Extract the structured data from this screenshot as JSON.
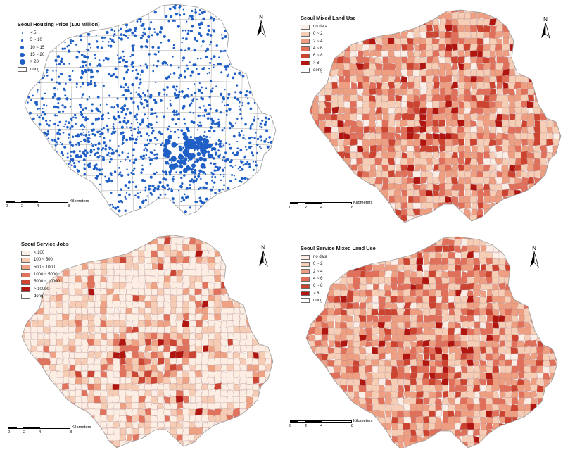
{
  "panels": [
    {
      "id": "housing",
      "title": "Seoul Housing Price (100 Million)",
      "legend_type": "points",
      "point_color": "#1f5fc6",
      "legend": [
        {
          "label": "< 5"
        },
        {
          "label": "5 ~ 10"
        },
        {
          "label": "10 ~ 15"
        },
        {
          "label": "15 ~ 20"
        },
        {
          "label": "> 20"
        }
      ],
      "boundary_label": "dong"
    },
    {
      "id": "mixed",
      "title": "Seoul Mixed Land Use",
      "legend_type": "fill",
      "legend": [
        {
          "label": "no data",
          "color": "#fbeee6"
        },
        {
          "label": "0 ~ 2",
          "color": "#f6cdb5"
        },
        {
          "label": "2 ~ 4",
          "color": "#ee9f81"
        },
        {
          "label": "4 ~ 6",
          "color": "#e1705a"
        },
        {
          "label": "6 ~ 8",
          "color": "#cc4430"
        },
        {
          "label": "> 8",
          "color": "#b1150f"
        }
      ],
      "boundary_label": "dong"
    },
    {
      "id": "jobs",
      "title": "Seoul Service Jobs",
      "legend_type": "fill",
      "legend": [
        {
          "label": "< 100",
          "color": "#fdeee3"
        },
        {
          "label": "100 ~ 500",
          "color": "#f6cdb4"
        },
        {
          "label": "500 ~ 1000",
          "color": "#eea283"
        },
        {
          "label": "1000 ~ 5000",
          "color": "#e1725b"
        },
        {
          "label": "5000 ~ 10000",
          "color": "#cc4532"
        },
        {
          "label": "> 10000",
          "color": "#b1150f"
        }
      ],
      "boundary_label": "dong"
    },
    {
      "id": "service",
      "title": "Seoul Service Mixed Land Use",
      "legend_type": "fill",
      "legend": [
        {
          "label": "no data",
          "color": "#fbeee6"
        },
        {
          "label": "0 ~ 2",
          "color": "#f6cdb5"
        },
        {
          "label": "2 ~ 4",
          "color": "#ee9f81"
        },
        {
          "label": "4 ~ 6",
          "color": "#e1705a"
        },
        {
          "label": "6 ~ 8",
          "color": "#cc4430"
        },
        {
          "label": "> 8",
          "color": "#b1150f"
        }
      ],
      "boundary_label": "dong"
    }
  ],
  "north_label": "N",
  "scale": {
    "ticks": [
      "0",
      "2",
      "4",
      "8"
    ],
    "unit": "Kilometers"
  }
}
